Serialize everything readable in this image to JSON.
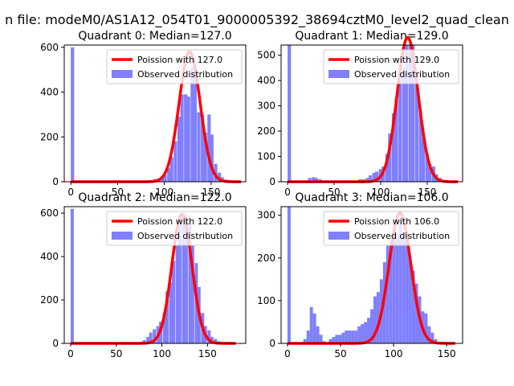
{
  "suptitle": "n file: modeM0/AS1A12_054T01_9000005392_38694cztM0_level2_quad_clean",
  "colors": {
    "hist": "#8080ff",
    "poisson": "#ff0000"
  },
  "chart_data": [
    {
      "type": "bar",
      "title": "Quadrant 0: Median=127.0",
      "xlim": [
        -7,
        187
      ],
      "ylim": [
        0,
        610
      ],
      "xticks": [
        0,
        50,
        100,
        150
      ],
      "yticks": [
        0,
        200,
        400,
        600
      ],
      "legend": [
        {
          "label": "Poission with 127.0",
          "kind": "line"
        },
        {
          "label": "Observed distribution",
          "kind": "patch"
        }
      ],
      "legend_placement": "upper-right",
      "hist": {
        "bin_width": 3.6,
        "bins": [
          [
            0,
            600
          ],
          [
            81,
            2
          ],
          [
            85,
            5
          ],
          [
            88,
            12
          ],
          [
            92,
            15
          ],
          [
            96,
            25
          ],
          [
            99,
            30
          ],
          [
            103,
            60
          ],
          [
            106,
            110
          ],
          [
            110,
            180
          ],
          [
            114,
            290
          ],
          [
            117,
            390
          ],
          [
            121,
            390
          ],
          [
            124,
            380
          ],
          [
            128,
            510
          ],
          [
            131,
            520
          ],
          [
            135,
            310
          ],
          [
            139,
            300
          ],
          [
            142,
            220
          ],
          [
            146,
            300
          ],
          [
            149,
            210
          ],
          [
            153,
            80
          ],
          [
            157,
            40
          ],
          [
            160,
            20
          ],
          [
            164,
            10
          ],
          [
            168,
            5
          ],
          [
            171,
            4
          ],
          [
            175,
            3
          ]
        ]
      },
      "poisson": {
        "mu": 127.0,
        "peak": 580,
        "xmax": 182
      }
    },
    {
      "type": "bar",
      "title": "Quadrant 1: Median=129.0",
      "xlim": [
        -7,
        188
      ],
      "ylim": [
        0,
        540
      ],
      "xticks": [
        0,
        50,
        100,
        150
      ],
      "yticks": [
        0,
        100,
        200,
        300,
        400,
        500
      ],
      "legend": [
        {
          "label": "Poission with 129.0",
          "kind": "line"
        },
        {
          "label": "Observed distribution",
          "kind": "patch"
        }
      ],
      "legend_placement": "upper-right",
      "hist": {
        "bin_width": 3.6,
        "bins": [
          [
            0,
            540
          ],
          [
            22,
            15
          ],
          [
            26,
            18
          ],
          [
            29,
            15
          ],
          [
            33,
            10
          ],
          [
            76,
            10
          ],
          [
            80,
            10
          ],
          [
            84,
            15
          ],
          [
            87,
            25
          ],
          [
            91,
            35
          ],
          [
            94,
            40
          ],
          [
            98,
            50
          ],
          [
            101,
            60
          ],
          [
            105,
            110
          ],
          [
            108,
            190
          ],
          [
            112,
            270
          ],
          [
            115,
            330
          ],
          [
            119,
            430
          ],
          [
            123,
            450
          ],
          [
            126,
            570
          ],
          [
            130,
            570
          ],
          [
            133,
            570
          ],
          [
            137,
            390
          ],
          [
            141,
            280
          ],
          [
            144,
            170
          ],
          [
            148,
            110
          ],
          [
            151,
            70
          ],
          [
            155,
            60
          ],
          [
            158,
            30
          ],
          [
            162,
            15
          ],
          [
            166,
            8
          ],
          [
            169,
            5
          ],
          [
            173,
            3
          ]
        ]
      },
      "poisson": {
        "mu": 129.0,
        "peak": 570,
        "xmax": 183
      }
    },
    {
      "type": "bar",
      "title": "Quadrant 2: Median=122.0",
      "xlim": [
        -7,
        192
      ],
      "ylim": [
        0,
        630
      ],
      "xticks": [
        0,
        50,
        100,
        150
      ],
      "yticks": [
        0,
        200,
        400,
        600
      ],
      "legend": [
        {
          "label": "Poission with 122.0",
          "kind": "line"
        },
        {
          "label": "Observed distribution",
          "kind": "patch"
        }
      ],
      "legend_placement": "upper-right",
      "hist": {
        "bin_width": 3.5,
        "bins": [
          [
            0,
            620
          ],
          [
            72,
            4
          ],
          [
            76,
            8
          ],
          [
            79,
            15
          ],
          [
            83,
            30
          ],
          [
            86,
            50
          ],
          [
            90,
            65
          ],
          [
            94,
            80
          ],
          [
            97,
            100
          ],
          [
            101,
            140
          ],
          [
            104,
            240
          ],
          [
            108,
            280
          ],
          [
            111,
            380
          ],
          [
            115,
            450
          ],
          [
            118,
            590
          ],
          [
            122,
            600
          ],
          [
            125,
            590
          ],
          [
            129,
            560
          ],
          [
            132,
            450
          ],
          [
            136,
            370
          ],
          [
            139,
            260
          ],
          [
            143,
            140
          ],
          [
            146,
            80
          ],
          [
            150,
            60
          ],
          [
            153,
            30
          ],
          [
            157,
            20
          ],
          [
            160,
            10
          ],
          [
            164,
            5
          ],
          [
            168,
            3
          ]
        ]
      },
      "poisson": {
        "mu": 122.0,
        "peak": 595,
        "xmax": 181
      }
    },
    {
      "type": "bar",
      "title": "Quadrant 3: Median=106.0",
      "xlim": [
        -6,
        165
      ],
      "ylim": [
        0,
        320
      ],
      "xticks": [
        0,
        50,
        100,
        150
      ],
      "yticks": [
        0,
        100,
        200,
        300
      ],
      "legend": [
        {
          "label": "Poission with 106.0",
          "kind": "line"
        },
        {
          "label": "Observed distribution",
          "kind": "patch"
        }
      ],
      "legend_placement": "upper-right",
      "hist": {
        "bin_width": 3.0,
        "bins": [
          [
            0,
            320
          ],
          [
            15,
            10
          ],
          [
            18,
            30
          ],
          [
            21,
            85
          ],
          [
            24,
            70
          ],
          [
            27,
            40
          ],
          [
            30,
            20
          ],
          [
            33,
            5
          ],
          [
            39,
            10
          ],
          [
            42,
            15
          ],
          [
            45,
            20
          ],
          [
            48,
            20
          ],
          [
            51,
            25
          ],
          [
            54,
            30
          ],
          [
            57,
            30
          ],
          [
            60,
            30
          ],
          [
            63,
            30
          ],
          [
            66,
            40
          ],
          [
            69,
            45
          ],
          [
            72,
            50
          ],
          [
            75,
            60
          ],
          [
            78,
            80
          ],
          [
            81,
            110
          ],
          [
            84,
            120
          ],
          [
            87,
            150
          ],
          [
            90,
            190
          ],
          [
            93,
            230
          ],
          [
            96,
            240
          ],
          [
            99,
            250
          ],
          [
            102,
            250
          ],
          [
            105,
            290
          ],
          [
            108,
            260
          ],
          [
            111,
            250
          ],
          [
            114,
            200
          ],
          [
            117,
            170
          ],
          [
            120,
            140
          ],
          [
            123,
            110
          ],
          [
            126,
            75
          ],
          [
            129,
            70
          ],
          [
            132,
            40
          ],
          [
            135,
            25
          ],
          [
            138,
            10
          ]
        ]
      },
      "poisson": {
        "mu": 106.0,
        "peak": 305,
        "xmax": 158
      }
    }
  ]
}
